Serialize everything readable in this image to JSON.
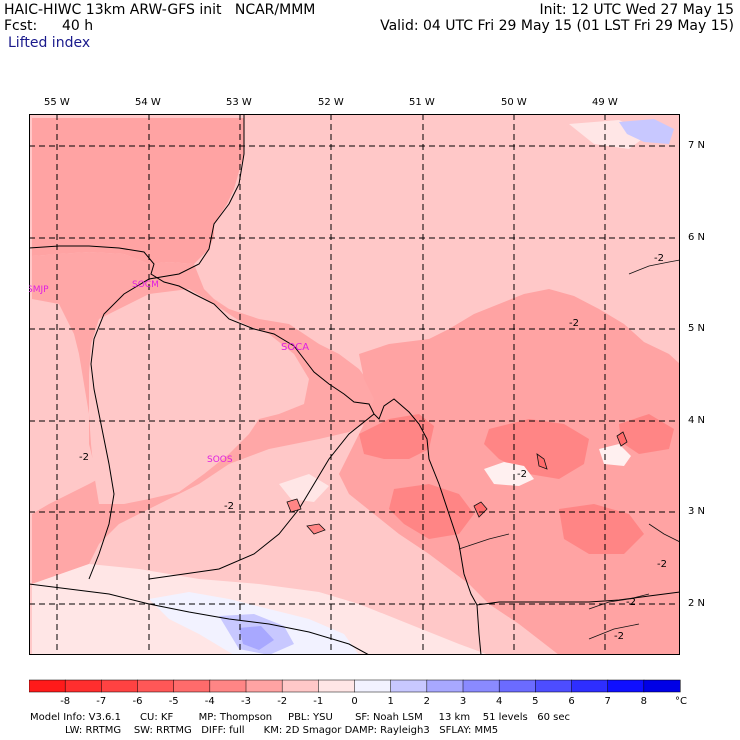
{
  "header": {
    "title_left": "HAIC-HIWC 13km ARW-GFS init   NCAR/MMM",
    "fcst_label": "Fcst:",
    "fcst_value": "40 h",
    "field_name": "Lifted index",
    "init": "Init: 12 UTC Wed 27 May 15",
    "valid": "Valid: 04 UTC Fri 29 May 15 (01 LST Fri 29 May 15)"
  },
  "map": {
    "longitude_labels": [
      "55 W",
      "54 W",
      "53 W",
      "52 W",
      "51 W",
      "50 W",
      "49 W"
    ],
    "latitude_labels": [
      "7 N",
      "6 N",
      "5 N",
      "4 N",
      "3 N",
      "2 N"
    ],
    "station_labels": [
      "SMJP",
      "SOCM",
      "SOCA",
      "SOOS"
    ],
    "station_color": "#e020e0",
    "contour_labels": [
      "-2",
      "-2",
      "-2",
      "-2",
      "-2",
      "-2",
      "-2",
      "-2"
    ]
  },
  "colorbar": {
    "tick_labels": [
      "-8",
      "-7",
      "-6",
      "-5",
      "-4",
      "-3",
      "-2",
      "-1",
      "0",
      "1",
      "2",
      "3",
      "4",
      "5",
      "6",
      "7",
      "8"
    ],
    "unit": "°C",
    "colors": [
      "#ff1a1a",
      "#ff2e2e",
      "#ff4242",
      "#ff5757",
      "#ff6b6b",
      "#ff8585",
      "#ffa3a3",
      "#ffc8c8",
      "#ffe6e6",
      "#f2f2ff",
      "#c8c8ff",
      "#a8a8ff",
      "#8a8aff",
      "#6b6bff",
      "#4d4dff",
      "#2e2eff",
      "#0f0fff",
      "#0000e6"
    ]
  },
  "footer": {
    "line1": "Model Info: V3.6.1      CU: KF        MP: Thompson     PBL: YSU       SF: Noah LSM     13 km    51 levels   60 sec",
    "line2": "           LW: RRTMG    SW: RRTMG   DIFF: full      KM: 2D Smagor DAMP: Rayleigh3   SFLAY: MM5"
  }
}
